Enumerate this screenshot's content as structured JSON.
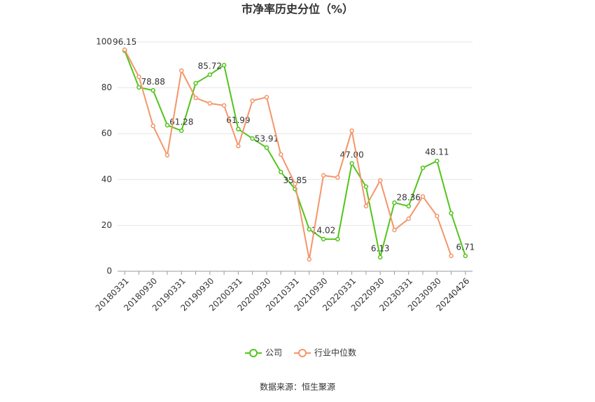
{
  "chart_data": {
    "type": "line",
    "title": "市净率历史分位（%）",
    "source": "数据来源：恒生聚源",
    "categories": [
      "20180331",
      null,
      "20180930",
      null,
      "20190331",
      null,
      "20190930",
      null,
      "20200331",
      null,
      "20200930",
      null,
      "20210331",
      null,
      "20210930",
      null,
      "20220331",
      null,
      "20220930",
      null,
      "20230331",
      null,
      "20230930",
      null,
      "20240426"
    ],
    "series": [
      {
        "name": "公司",
        "color": "#52c41a",
        "values": [
          96.15,
          80.2,
          78.88,
          63.7,
          61.28,
          82.0,
          85.72,
          89.9,
          61.99,
          57.9,
          53.91,
          43.3,
          35.85,
          18.3,
          14.02,
          14.0,
          47.0,
          36.9,
          6.13,
          29.9,
          28.36,
          45.1,
          48.11,
          25.3,
          6.71
        ],
        "value_labels": [
          "96.15",
          null,
          "78.88",
          null,
          "61.28",
          null,
          "85.72",
          null,
          "61.99",
          null,
          "53.91",
          null,
          "35.85",
          null,
          "14.02",
          null,
          "47.00",
          null,
          "6.13",
          null,
          "28.36",
          null,
          "48.11",
          null,
          "6.71"
        ]
      },
      {
        "name": "行业中位数",
        "color": "#f4956a",
        "values": [
          96.6,
          84.8,
          63.4,
          50.6,
          87.5,
          75.6,
          73.2,
          72.3,
          54.6,
          74.4,
          75.9,
          50.9,
          38.1,
          5.2,
          41.8,
          40.9,
          61.3,
          28.4,
          39.6,
          18.0,
          22.9,
          32.6,
          24.1,
          6.7,
          null
        ]
      }
    ],
    "ylim": [
      0,
      100
    ],
    "yticks": [
      0,
      20,
      40,
      60,
      80,
      100
    ],
    "grid": true
  }
}
